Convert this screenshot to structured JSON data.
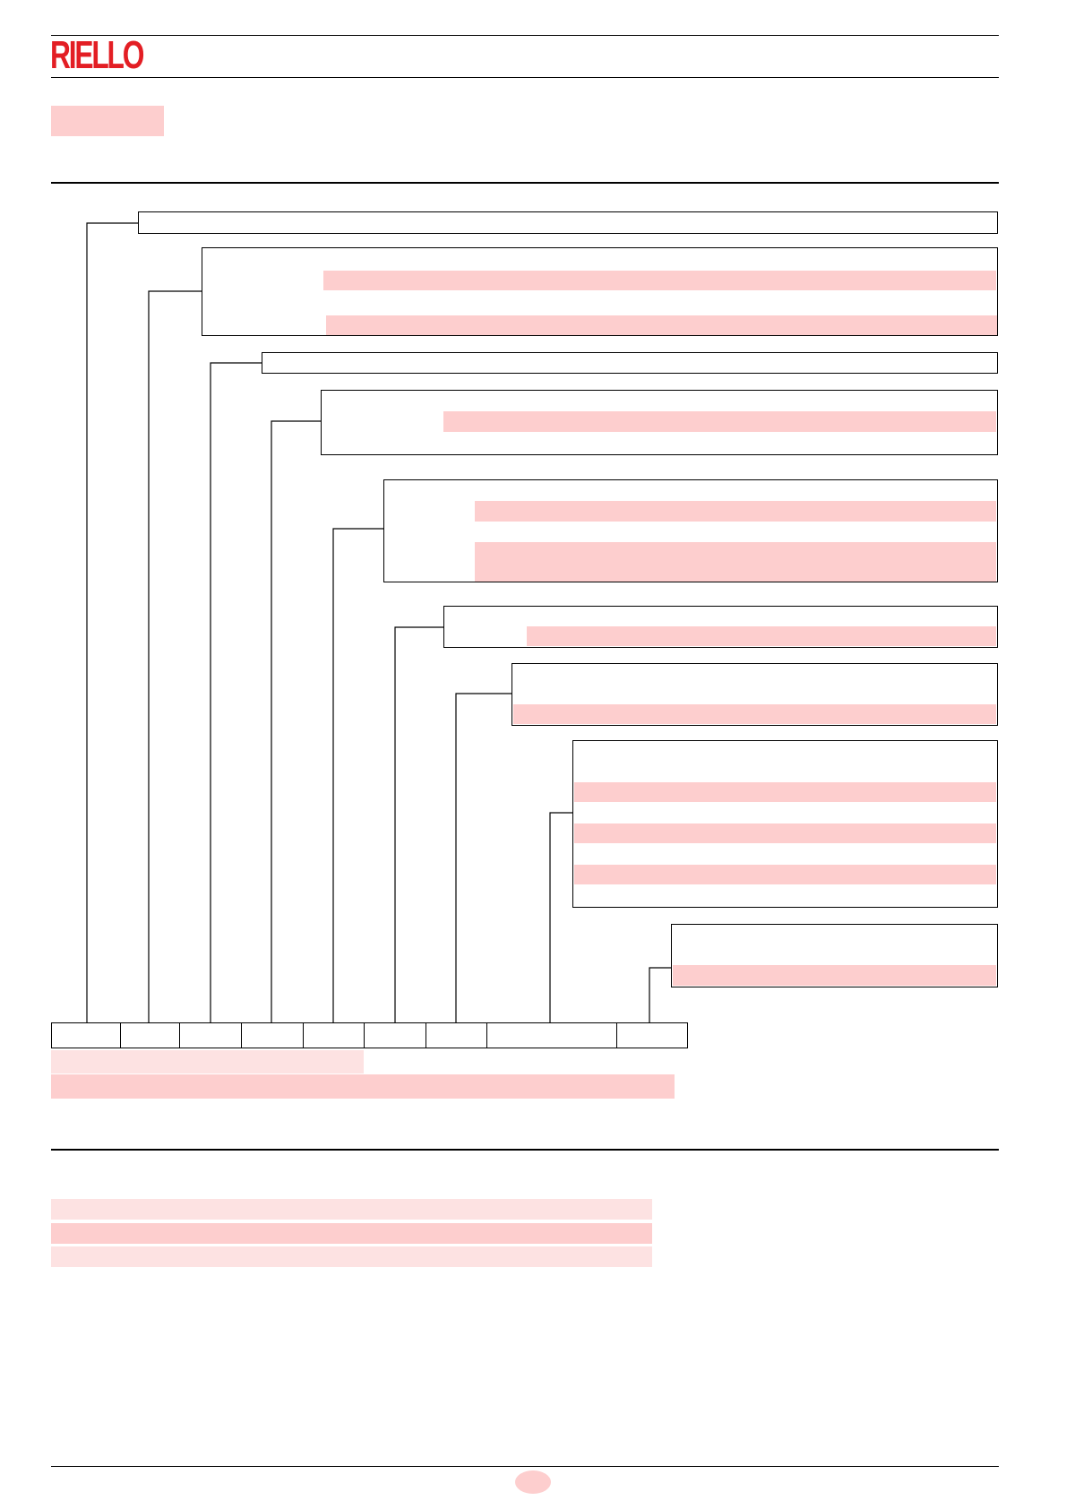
{
  "brand": {
    "name": "RIELLO",
    "color": "#e31e24"
  },
  "colors": {
    "highlight": "#fdcece",
    "highlight_light": "#fde2e2"
  },
  "diagram": {
    "code_segment_count": 9,
    "description_box_count": 9
  }
}
